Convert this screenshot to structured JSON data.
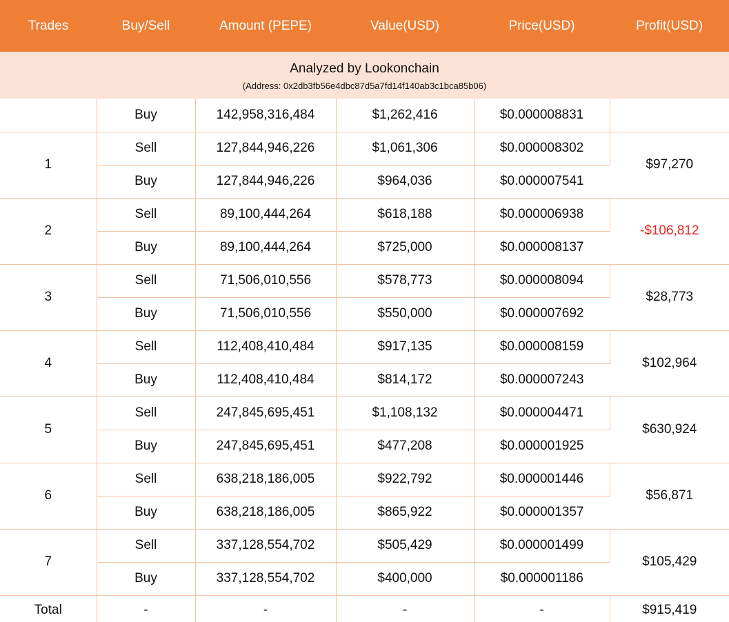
{
  "headers": [
    "Trades",
    "Buy/Sell",
    "Amount (PEPE)",
    "Value(USD)",
    "Price(USD)",
    "Profit(USD)"
  ],
  "analyzed": {
    "title": "Analyzed by Lookonchain",
    "address": "(Address: 0x2db3fb56e4dbc87d5a7fd14f140ab3c1bca85b06)"
  },
  "initial": {
    "side": "Buy",
    "amount": "142,958,316,484",
    "value": "$1,262,416",
    "price": "$0.000008831"
  },
  "trades": [
    {
      "num": "1",
      "profit": "$97,270",
      "negative": false,
      "rows": [
        {
          "side": "Sell",
          "amount": "127,844,946,226",
          "value": "$1,061,306",
          "price": "$0.000008302"
        },
        {
          "side": "Buy",
          "amount": "127,844,946,226",
          "value": "$964,036",
          "price": "$0.000007541"
        }
      ]
    },
    {
      "num": "2",
      "profit": "-$106,812",
      "negative": true,
      "rows": [
        {
          "side": "Sell",
          "amount": "89,100,444,264",
          "value": "$618,188",
          "price": "$0.000006938"
        },
        {
          "side": "Buy",
          "amount": "89,100,444,264",
          "value": "$725,000",
          "price": "$0.000008137"
        }
      ]
    },
    {
      "num": "3",
      "profit": "$28,773",
      "negative": false,
      "rows": [
        {
          "side": "Sell",
          "amount": "71,506,010,556",
          "value": "$578,773",
          "price": "$0.000008094"
        },
        {
          "side": "Buy",
          "amount": "71,506,010,556",
          "value": "$550,000",
          "price": "$0.000007692"
        }
      ]
    },
    {
      "num": "4",
      "profit": "$102,964",
      "negative": false,
      "rows": [
        {
          "side": "Sell",
          "amount": "112,408,410,484",
          "value": "$917,135",
          "price": "$0.000008159"
        },
        {
          "side": "Buy",
          "amount": "112,408,410,484",
          "value": "$814,172",
          "price": "$0.000007243"
        }
      ]
    },
    {
      "num": "5",
      "profit": "$630,924",
      "negative": false,
      "rows": [
        {
          "side": "Sell",
          "amount": "247,845,695,451",
          "value": "$1,108,132",
          "price": "$0.000004471"
        },
        {
          "side": "Buy",
          "amount": "247,845,695,451",
          "value": "$477,208",
          "price": "$0.000001925"
        }
      ]
    },
    {
      "num": "6",
      "profit": "$56,871",
      "negative": false,
      "rows": [
        {
          "side": "Sell",
          "amount": "638,218,186,005",
          "value": "$922,792",
          "price": "$0.000001446"
        },
        {
          "side": "Buy",
          "amount": "638,218,186,005",
          "value": "$865,922",
          "price": "$0.000001357"
        }
      ]
    },
    {
      "num": "7",
      "profit": "$105,429",
      "negative": false,
      "rows": [
        {
          "side": "Sell",
          "amount": "337,128,554,702",
          "value": "$505,429",
          "price": "$0.000001499"
        },
        {
          "side": "Buy",
          "amount": "337,128,554,702",
          "value": "$400,000",
          "price": "$0.000001186"
        }
      ]
    }
  ],
  "total": {
    "label": "Total",
    "side": "-",
    "amount": "-",
    "value": "-",
    "price": "-",
    "profit": "$915,419"
  },
  "colors": {
    "header_bg": "#ee7f35",
    "analyzed_bg": "#fde3d6",
    "grid": "#f4c3a6",
    "negative": "#e4251b"
  }
}
